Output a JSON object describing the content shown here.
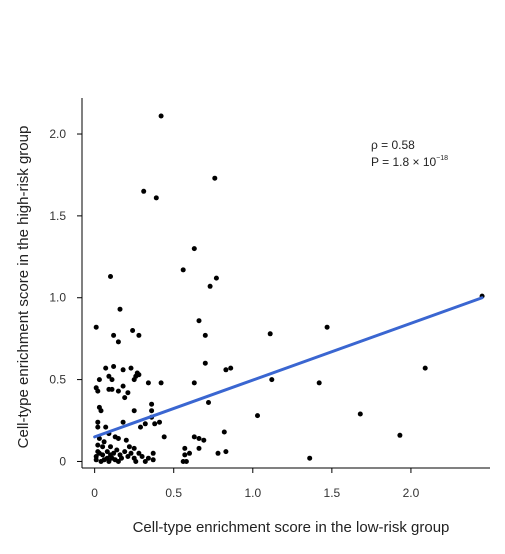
{
  "chart_data": {
    "type": "scatter",
    "title": "",
    "xlabel": "Cell-type enrichment score in the low-risk group",
    "ylabel": "Cell-type enrichment score in the high-risk group",
    "xlim": [
      -0.08,
      2.5
    ],
    "ylim": [
      -0.04,
      2.22
    ],
    "x_ticks": [
      0,
      0.5,
      1.0,
      1.5,
      2.0
    ],
    "x_tick_labels": [
      "0",
      "0.5",
      "1.0",
      "1.5",
      "2.0"
    ],
    "y_ticks": [
      0,
      0.5,
      1.0,
      1.5,
      2.0
    ],
    "y_tick_labels": [
      "0",
      "0.5",
      "1.0",
      "1.5",
      "2.0"
    ],
    "grid": false,
    "point_color": "#000000",
    "fit_color": "#3a66d1",
    "annotation": {
      "rho_text": "ρ = 0.58",
      "p_text": "P = 1.8 × 10",
      "p_exponent": "−18"
    },
    "fit_line": {
      "x": [
        0.0,
        2.45
      ],
      "y": [
        0.15,
        1.0
      ]
    },
    "points": [
      [
        0.42,
        2.11
      ],
      [
        0.31,
        1.65
      ],
      [
        0.39,
        1.61
      ],
      [
        0.76,
        1.73
      ],
      [
        0.63,
        1.3
      ],
      [
        0.56,
        1.17
      ],
      [
        0.77,
        1.12
      ],
      [
        0.73,
        1.07
      ],
      [
        0.1,
        1.13
      ],
      [
        0.16,
        0.93
      ],
      [
        0.66,
        0.86
      ],
      [
        0.01,
        0.82
      ],
      [
        0.12,
        0.77
      ],
      [
        0.15,
        0.73
      ],
      [
        0.24,
        0.8
      ],
      [
        0.28,
        0.77
      ],
      [
        0.7,
        0.77
      ],
      [
        1.11,
        0.78
      ],
      [
        1.47,
        0.82
      ],
      [
        2.45,
        1.01
      ],
      [
        2.09,
        0.57
      ],
      [
        1.12,
        0.5
      ],
      [
        1.42,
        0.48
      ],
      [
        1.68,
        0.29
      ],
      [
        1.93,
        0.16
      ],
      [
        1.36,
        0.02
      ],
      [
        1.03,
        0.28
      ],
      [
        0.83,
        0.56
      ],
      [
        0.86,
        0.57
      ],
      [
        0.7,
        0.6
      ],
      [
        0.63,
        0.48
      ],
      [
        0.72,
        0.36
      ],
      [
        0.82,
        0.18
      ],
      [
        0.83,
        0.06
      ],
      [
        0.78,
        0.05
      ],
      [
        0.69,
        0.13
      ],
      [
        0.66,
        0.14
      ],
      [
        0.63,
        0.15
      ],
      [
        0.66,
        0.08
      ],
      [
        0.57,
        0.08
      ],
      [
        0.6,
        0.05
      ],
      [
        0.57,
        0.04
      ],
      [
        0.56,
        0.0
      ],
      [
        0.58,
        0.0
      ],
      [
        0.44,
        0.15
      ],
      [
        0.41,
        0.24
      ],
      [
        0.38,
        0.23
      ],
      [
        0.36,
        0.27
      ],
      [
        0.36,
        0.31
      ],
      [
        0.36,
        0.35
      ],
      [
        0.34,
        0.48
      ],
      [
        0.42,
        0.48
      ],
      [
        0.27,
        0.54
      ],
      [
        0.26,
        0.52
      ],
      [
        0.25,
        0.5
      ],
      [
        0.28,
        0.53
      ],
      [
        0.23,
        0.57
      ],
      [
        0.18,
        0.56
      ],
      [
        0.12,
        0.58
      ],
      [
        0.07,
        0.57
      ],
      [
        0.09,
        0.52
      ],
      [
        0.11,
        0.5
      ],
      [
        0.03,
        0.5
      ],
      [
        0.01,
        0.45
      ],
      [
        0.02,
        0.43
      ],
      [
        0.09,
        0.44
      ],
      [
        0.11,
        0.44
      ],
      [
        0.15,
        0.43
      ],
      [
        0.18,
        0.46
      ],
      [
        0.21,
        0.42
      ],
      [
        0.19,
        0.39
      ],
      [
        0.03,
        0.33
      ],
      [
        0.04,
        0.31
      ],
      [
        0.25,
        0.31
      ],
      [
        0.32,
        0.23
      ],
      [
        0.29,
        0.21
      ],
      [
        0.18,
        0.24
      ],
      [
        0.02,
        0.24
      ],
      [
        0.02,
        0.21
      ],
      [
        0.07,
        0.21
      ],
      [
        0.09,
        0.17
      ],
      [
        0.13,
        0.15
      ],
      [
        0.15,
        0.14
      ],
      [
        0.03,
        0.14
      ],
      [
        0.02,
        0.1
      ],
      [
        0.05,
        0.09
      ],
      [
        0.1,
        0.09
      ],
      [
        0.14,
        0.07
      ],
      [
        0.2,
        0.13
      ],
      [
        0.22,
        0.09
      ],
      [
        0.25,
        0.08
      ],
      [
        0.28,
        0.05
      ],
      [
        0.37,
        0.05
      ],
      [
        0.3,
        0.03
      ],
      [
        0.34,
        0.02
      ],
      [
        0.37,
        0.01
      ],
      [
        0.32,
        0.0
      ],
      [
        0.25,
        0.02
      ],
      [
        0.21,
        0.03
      ],
      [
        0.19,
        0.06
      ],
      [
        0.16,
        0.04
      ],
      [
        0.12,
        0.05
      ],
      [
        0.1,
        0.04
      ],
      [
        0.08,
        0.06
      ],
      [
        0.05,
        0.04
      ],
      [
        0.03,
        0.05
      ],
      [
        0.01,
        0.03
      ],
      [
        0.01,
        0.01
      ],
      [
        0.04,
        0.0
      ],
      [
        0.06,
        0.01
      ],
      [
        0.09,
        0.0
      ],
      [
        0.13,
        0.01
      ],
      [
        0.15,
        0.0
      ],
      [
        0.02,
        0.06
      ],
      [
        0.06,
        0.12
      ],
      [
        0.08,
        0.02
      ],
      [
        0.11,
        0.02
      ],
      [
        0.17,
        0.02
      ],
      [
        0.23,
        0.05
      ],
      [
        0.26,
        0.0
      ]
    ]
  }
}
